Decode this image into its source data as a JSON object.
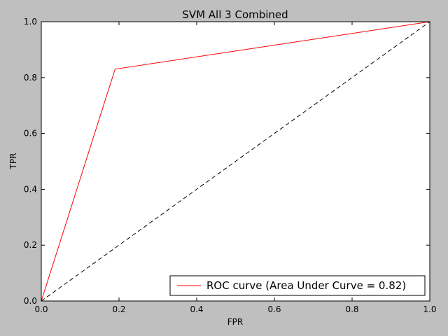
{
  "chart_data": {
    "type": "line",
    "title": "SVM All 3 Combined",
    "xlabel": "FPR",
    "ylabel": "TPR",
    "xlim": [
      0.0,
      1.0
    ],
    "ylim": [
      0.0,
      1.0
    ],
    "xticks": [
      "0.0",
      "0.2",
      "0.4",
      "0.6",
      "0.8",
      "1.0"
    ],
    "yticks": [
      "0.0",
      "0.2",
      "0.4",
      "0.6",
      "0.8",
      "1.0"
    ],
    "grid": false,
    "legend_position": "lower-right",
    "series": [
      {
        "name": "ROC curve (Area Under Curve = 0.82)",
        "color": "#ff0000",
        "style": "solid",
        "x": [
          0.0,
          0.19,
          1.0
        ],
        "y": [
          0.0,
          0.83,
          1.0
        ]
      },
      {
        "color": "#000000",
        "style": "dashed",
        "x": [
          0.0,
          1.0
        ],
        "y": [
          0.0,
          1.0
        ]
      }
    ]
  }
}
